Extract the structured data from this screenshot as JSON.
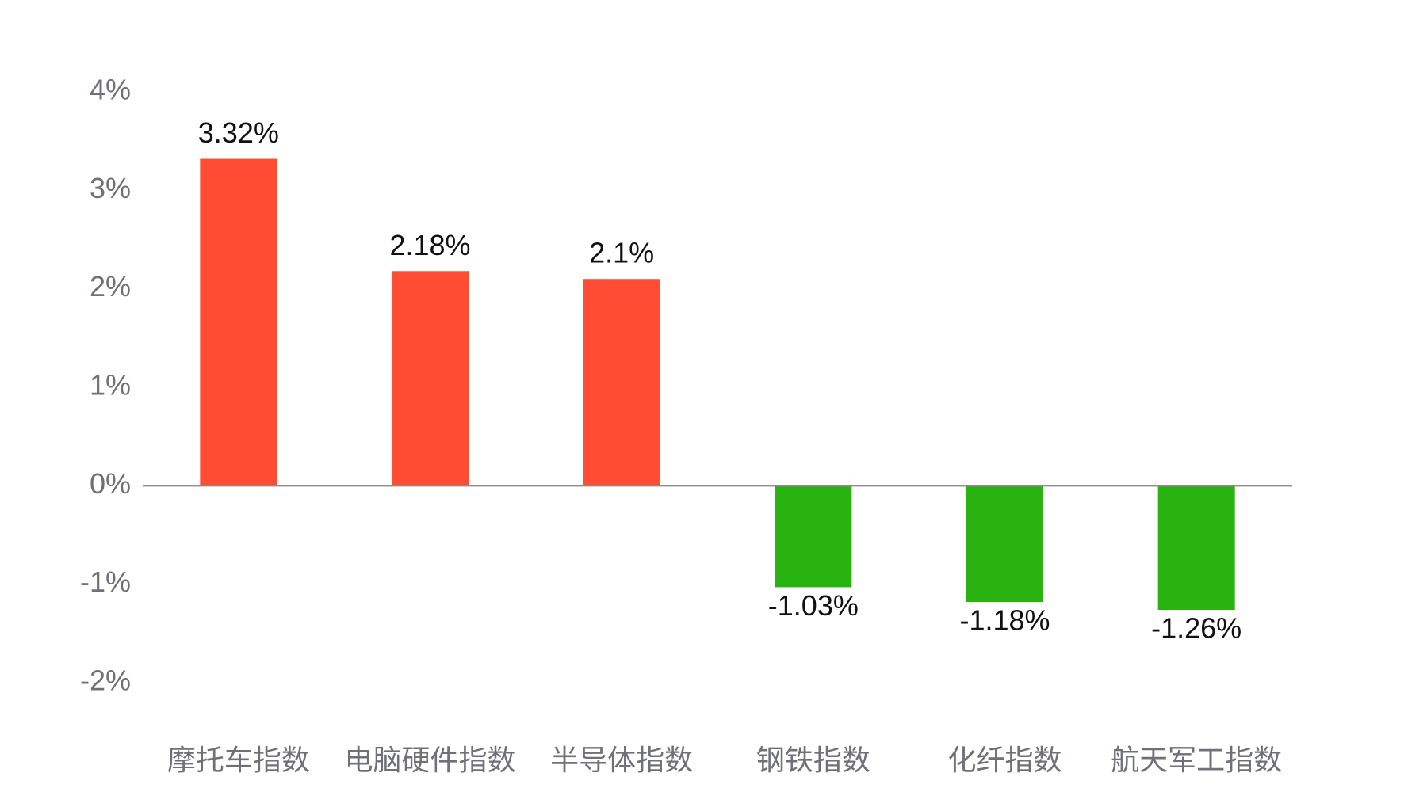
{
  "chart_data": {
    "type": "bar",
    "categories": [
      "摩托车指数",
      "电脑硬件指数",
      "半导体指数",
      "钢铁指数",
      "化纤指数",
      "航天军工指数"
    ],
    "values": [
      3.32,
      2.18,
      2.1,
      -1.03,
      -1.18,
      -1.26
    ],
    "value_labels": [
      "3.32%",
      "2.18%",
      "2.1%",
      "-1.03%",
      "-1.18%",
      "-1.26%"
    ],
    "ylim": [
      -2,
      4
    ],
    "y_ticks": [
      4,
      3,
      2,
      1,
      0,
      -1,
      -2
    ],
    "y_tick_labels": [
      "4%",
      "3%",
      "2%",
      "1%",
      "0%",
      "-1%",
      "-2%"
    ],
    "title": "",
    "xlabel": "",
    "ylabel": "",
    "grid": false,
    "legend": "none",
    "colors": {
      "positive": "#ff4c33",
      "negative": "#28b311",
      "axis": "#8c8c8c",
      "tick_text": "#6f7078",
      "label_text": "#111111"
    }
  }
}
